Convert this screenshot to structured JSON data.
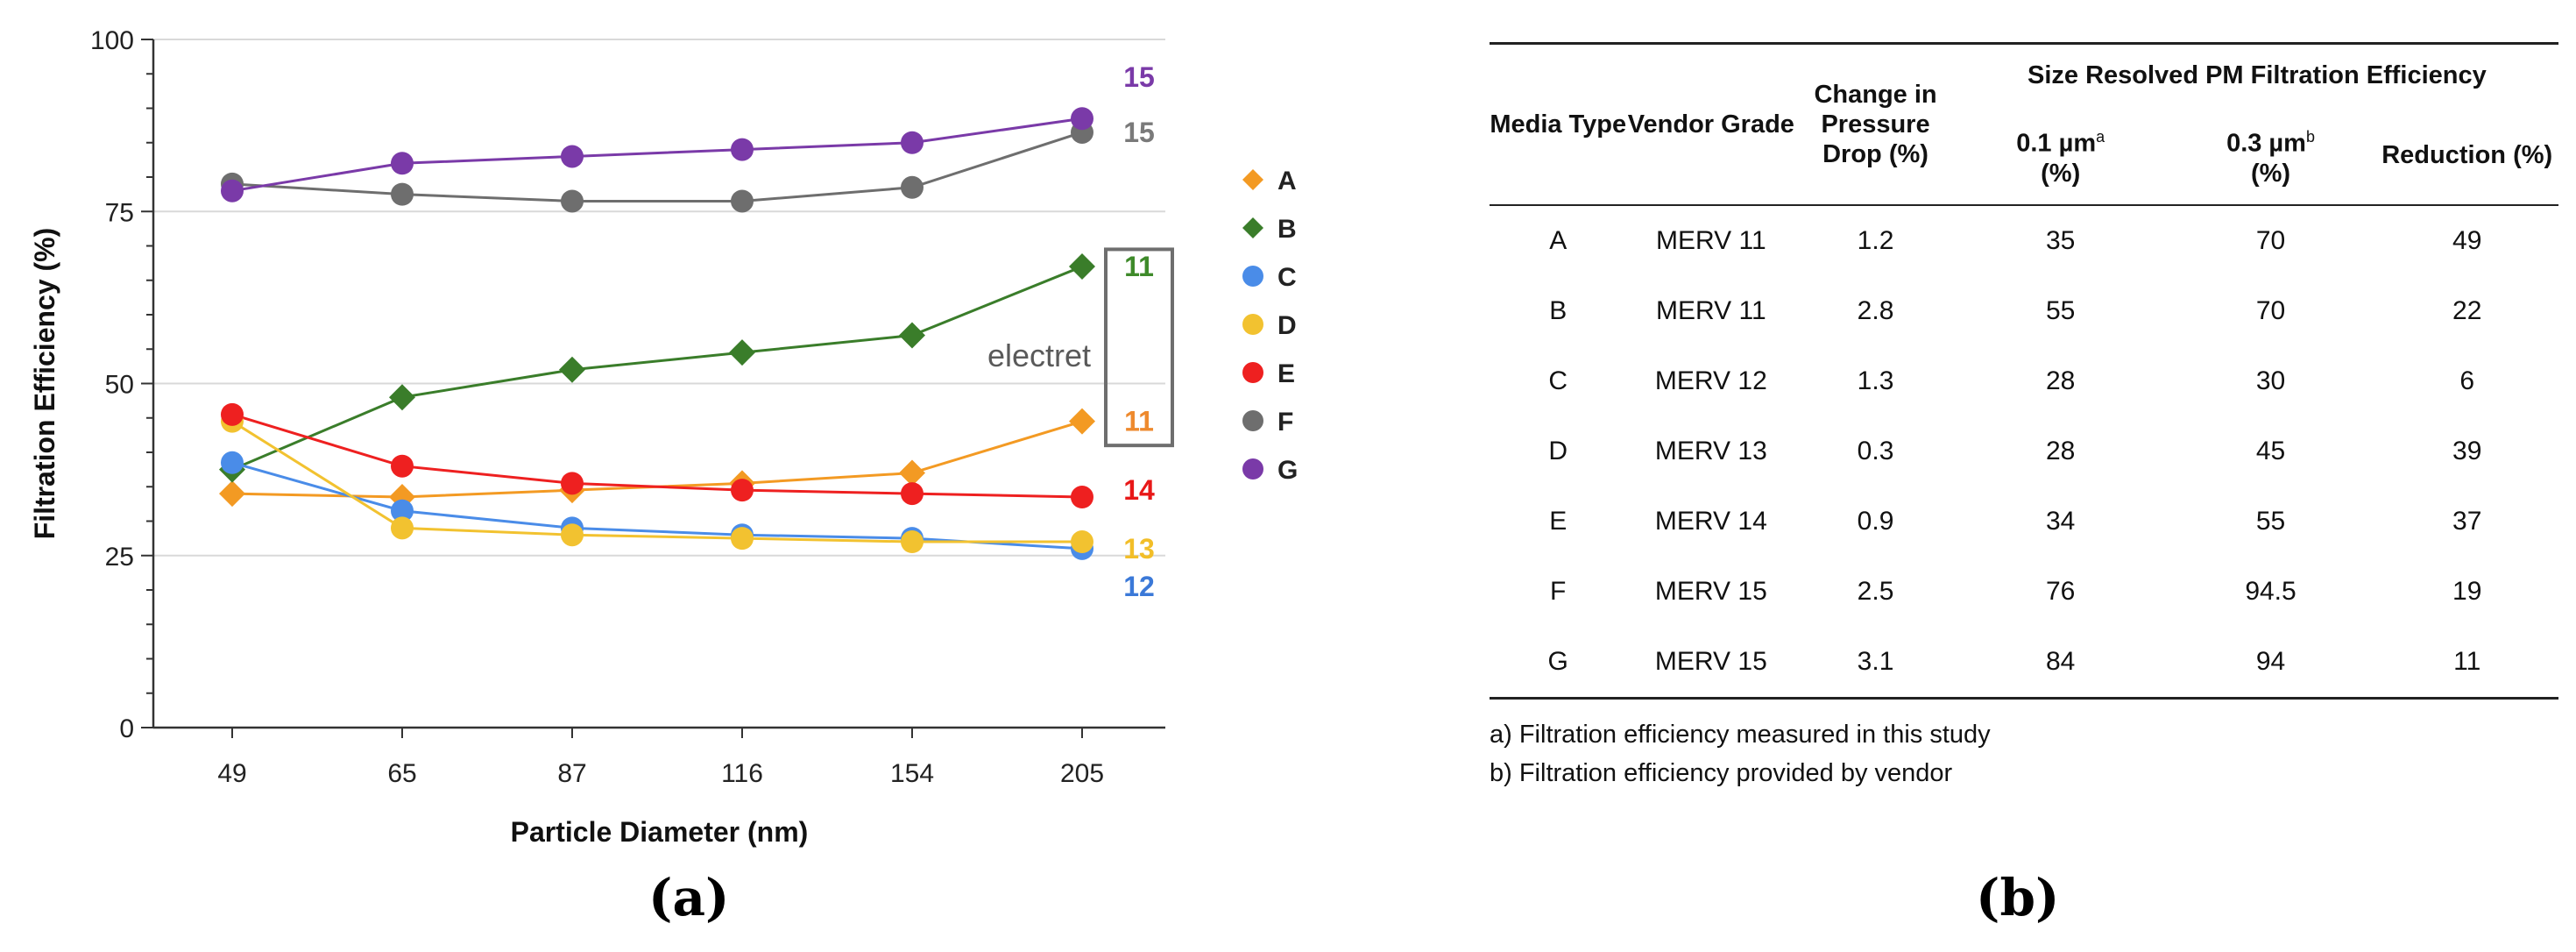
{
  "chart_data": {
    "type": "line",
    "title": "",
    "xlabel": "Particle Diameter (nm)",
    "ylabel": "Filtration Efficiency (%)",
    "categories": [
      "49",
      "65",
      "87",
      "116",
      "154",
      "205"
    ],
    "ylim": [
      0,
      100
    ],
    "yticks": [
      0,
      25,
      50,
      75,
      100
    ],
    "grid": true,
    "legend_position": "right",
    "series": [
      {
        "name": "A",
        "marker": "diamond",
        "color": "#F39A23",
        "values": [
          34,
          33.5,
          34.5,
          35.5,
          37,
          44.5
        ],
        "end_label": "11",
        "end_label_color": "#EE8A2E"
      },
      {
        "name": "B",
        "marker": "diamond",
        "color": "#3A7D2A",
        "values": [
          37.5,
          48,
          52,
          54.5,
          57,
          67
        ],
        "end_label": "11",
        "end_label_color": "#3E8A2A"
      },
      {
        "name": "C",
        "marker": "circle",
        "color": "#4A8CE8",
        "values": [
          38.5,
          31.5,
          29,
          28,
          27.5,
          26
        ],
        "end_label": "12",
        "end_label_color": "#3B79D8"
      },
      {
        "name": "D",
        "marker": "circle",
        "color": "#F2C230",
        "values": [
          44.5,
          29,
          28,
          27.5,
          27,
          27
        ],
        "end_label": "13",
        "end_label_color": "#F2BE28"
      },
      {
        "name": "E",
        "marker": "circle",
        "color": "#EE2020",
        "values": [
          45.5,
          38,
          35.5,
          34.5,
          34,
          33.5
        ],
        "end_label": "14",
        "end_label_color": "#E81818"
      },
      {
        "name": "F",
        "marker": "circle",
        "color": "#6E6E6E",
        "values": [
          79,
          77.5,
          76.5,
          76.5,
          78.5,
          86.5
        ],
        "end_label": "15",
        "end_label_color": "#7A7A7A"
      },
      {
        "name": "G",
        "marker": "circle",
        "color": "#7A3AA8",
        "values": [
          78,
          82,
          83,
          84,
          85,
          88.5
        ],
        "end_label": "15",
        "end_label_color": "#7A3AA8"
      }
    ],
    "annotation": "electret"
  },
  "panels": {
    "a": "(a)",
    "b": "(b)"
  },
  "table": {
    "headers": {
      "media_type": "Media Type",
      "vendor_grade": "Vendor Grade",
      "pressure": "Change in Pressure Drop (%)",
      "group": "Size Resolved PM Filtration Efficiency",
      "pm01": "0.1 µm",
      "pm01_sup": "a",
      "pm03": "0.3 µm",
      "pm03_sup": "b",
      "pct": "(%)",
      "reduction": "Reduction (%)"
    },
    "rows": [
      [
        "A",
        "MERV 11",
        "1.2",
        "35",
        "70",
        "49"
      ],
      [
        "B",
        "MERV 11",
        "2.8",
        "55",
        "70",
        "22"
      ],
      [
        "C",
        "MERV 12",
        "1.3",
        "28",
        "30",
        "6"
      ],
      [
        "D",
        "MERV 13",
        "0.3",
        "28",
        "45",
        "39"
      ],
      [
        "E",
        "MERV 14",
        "0.9",
        "34",
        "55",
        "37"
      ],
      [
        "F",
        "MERV 15",
        "2.5",
        "76",
        "94.5",
        "19"
      ],
      [
        "G",
        "MERV 15",
        "3.1",
        "84",
        "94",
        "11"
      ]
    ],
    "notes": [
      "a) Filtration efficiency measured in this study",
      "b) Filtration efficiency provided by vendor"
    ]
  }
}
